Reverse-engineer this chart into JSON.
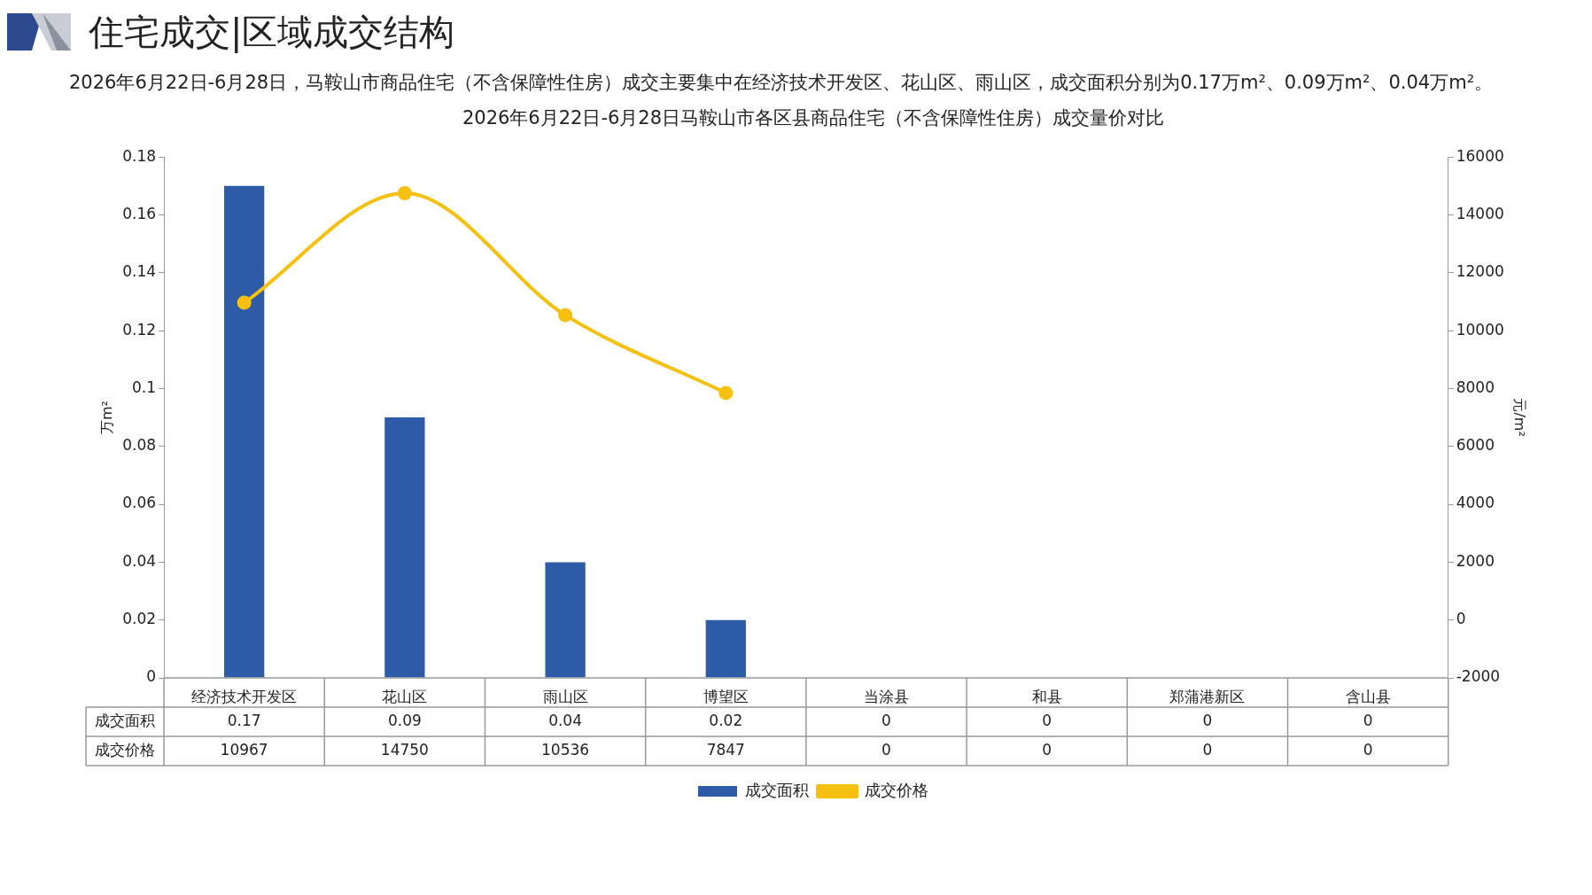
{
  "chart_data": {
    "type": "bar",
    "title": "2026年6月22日-6月28日马鞍山市各区县商品住宅（不含保障性住房）成交量价对比",
    "annotations": [
      "住宅成交|区域成交结构",
      "2026年6月22日-6月28日，马鞍山市商品住宅（不含保障性住房）成交主要集中在经济技术开发区、花山区、雨山区，成交面积分别为0.17万m²、0.09万m²、0.04万m²。"
    ],
    "ylabel": "万m²",
    "y2label": "元/m²",
    "categories": [
      "经济技术开发区",
      "花山区",
      "雨山区",
      "博望区",
      "当涂县",
      "和县",
      "郑蒲港新区",
      "含山县"
    ],
    "series": [
      {
        "name": "成交面积",
        "color": "#2e5ba8",
        "values": [
          0.17,
          0.09,
          0.04,
          0.02,
          0,
          0,
          0,
          0
        ],
        "value_labels": [
          "0.17",
          "0.09",
          "0.04",
          "0.02",
          "0",
          "0",
          "0",
          "0"
        ]
      },
      {
        "name": "成交价格",
        "type": "line",
        "axis": "y2",
        "color": "#f5c010",
        "marker": "circle",
        "line_style": "solid",
        "values": [
          10967,
          14750,
          10536,
          7847,
          null,
          null,
          null,
          null
        ],
        "value_labels": [
          "10967",
          "14750",
          "10536",
          "7847",
          "0",
          "0",
          "0",
          "0"
        ]
      }
    ],
    "ylim": [
      0,
      0.18
    ],
    "yticks": [
      0,
      0.02,
      0.04,
      0.06,
      0.08,
      0.1,
      0.12,
      0.14,
      0.16,
      0.18
    ],
    "y2lim": [
      -2000,
      16000
    ],
    "y2ticks": [
      -2000,
      0,
      2000,
      4000,
      6000,
      8000,
      10000,
      12000,
      14000,
      16000
    ],
    "grid": false,
    "legend": "bottom"
  }
}
